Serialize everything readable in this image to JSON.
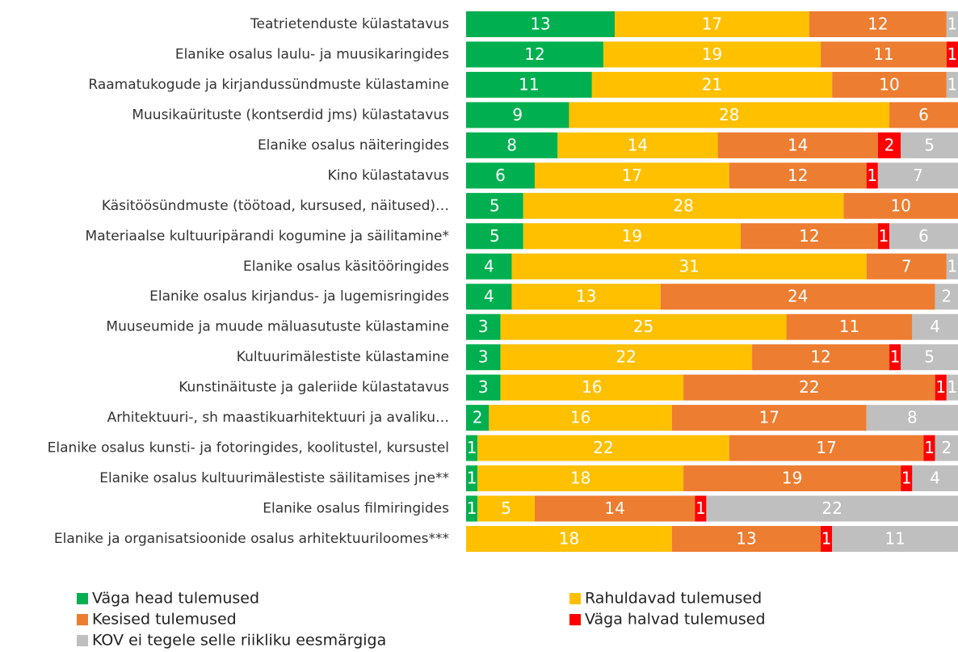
{
  "chart_data": {
    "type": "stacked-barh",
    "categories": [
      "Teatrietenduste külastatavus",
      "Elanike osalus laulu- ja muusikaringides",
      "Raamatukogude ja kirjandussündmuste külastamine",
      "Muusikaürituste (kontserdid jms) külastatavus",
      "Elanike osalus näiteringides",
      "Kino külastatavus",
      "Käsitöösündmuste (töötoad, kursused, näitused)…",
      "Materiaalse kultuuripärandi kogumine ja säilitamine*",
      "Elanike osalus käsitööringides",
      "Elanike osalus kirjandus- ja lugemisringides",
      "Muuseumide ja muude mäluasutuste külastamine",
      "Kultuurimälestiste külastamine",
      "Kunstinäituste ja galeriide külastatavus",
      "Arhitektuuri-, sh maastikuarhitektuuri ja avaliku…",
      "Elanike osalus kunsti- ja fotoringides, koolitustel, kursustel",
      "Elanike osalus kultuurimälestiste säilitamises jne**",
      "Elanike osalus filmiringides",
      "Elanike ja organisatsioonide osalus arhitektuuriloomes***"
    ],
    "series": [
      {
        "name": "Väga head tulemused",
        "color": "#00b050",
        "values": [
          13,
          12,
          11,
          9,
          8,
          6,
          5,
          5,
          4,
          4,
          3,
          3,
          3,
          2,
          1,
          1,
          1,
          null
        ]
      },
      {
        "name": "Rahuldavad tulemused",
        "color": "#ffc000",
        "values": [
          17,
          19,
          21,
          28,
          14,
          17,
          28,
          19,
          31,
          13,
          25,
          22,
          16,
          16,
          22,
          18,
          5,
          18
        ]
      },
      {
        "name": "Kesised tulemused",
        "color": "#ed7d31",
        "values": [
          12,
          11,
          10,
          6,
          14,
          12,
          10,
          12,
          7,
          24,
          11,
          12,
          22,
          17,
          17,
          19,
          14,
          13
        ]
      },
      {
        "name": "Väga halvad tulemused",
        "color": "#ff0000",
        "values": [
          null,
          1,
          null,
          null,
          2,
          1,
          null,
          1,
          null,
          null,
          null,
          1,
          1,
          null,
          1,
          1,
          1,
          1
        ]
      },
      {
        "name": "KOV ei tegele selle riikliku eesmärgiga",
        "color": "#bfbfbf",
        "values": [
          1,
          null,
          1,
          null,
          5,
          7,
          null,
          6,
          1,
          2,
          4,
          5,
          1,
          8,
          2,
          4,
          22,
          11
        ]
      }
    ],
    "xlim": [
      0,
      43
    ]
  }
}
